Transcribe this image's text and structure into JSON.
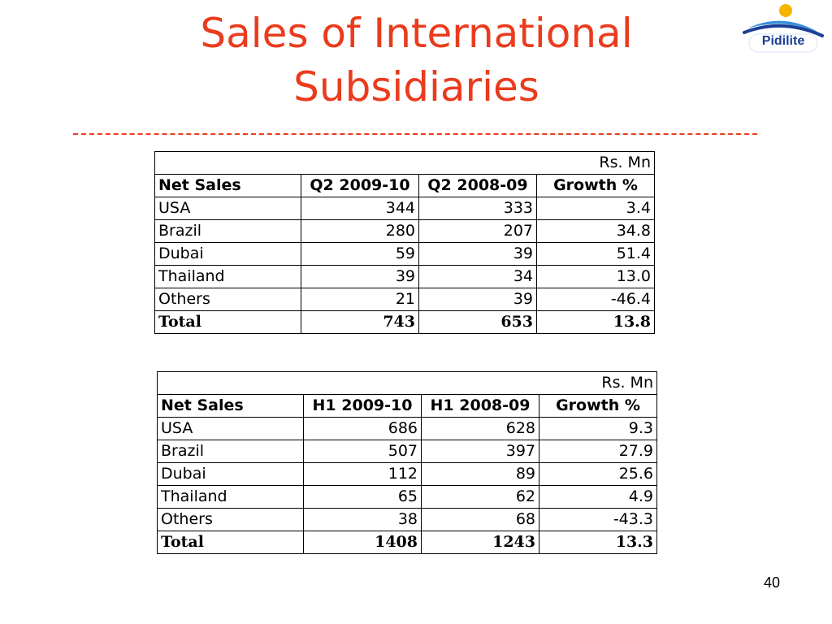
{
  "slide": {
    "title_line1": "Sales of International",
    "title_line2": "Subsidiaries",
    "page_number": "40"
  },
  "logo": {
    "text": "Pidilite"
  },
  "colors": {
    "title": "#ea3b1d",
    "logo_blue": "#1b3f96",
    "logo_sun": "#f5b400"
  },
  "tables": [
    {
      "unit": "Rs. Mn",
      "headers": [
        "Net Sales",
        "Q2 2009-10",
        "Q2 2008-09",
        "Growth %"
      ],
      "rows": [
        [
          "USA",
          "344",
          "333",
          "3.4"
        ],
        [
          "Brazil",
          "280",
          "207",
          "34.8"
        ],
        [
          "Dubai",
          "59",
          "39",
          "51.4"
        ],
        [
          "Thailand",
          "39",
          "34",
          "13.0"
        ],
        [
          "Others",
          "21",
          "39",
          "-46.4"
        ]
      ],
      "total": [
        "Total",
        "743",
        "653",
        "13.8"
      ]
    },
    {
      "unit": "Rs. Mn",
      "headers": [
        "Net Sales",
        "H1 2009-10",
        "H1 2008-09",
        "Growth %"
      ],
      "rows": [
        [
          "USA",
          "686",
          "628",
          "9.3"
        ],
        [
          "Brazil",
          "507",
          "397",
          "27.9"
        ],
        [
          "Dubai",
          "112",
          "89",
          "25.6"
        ],
        [
          "Thailand",
          "65",
          "62",
          "4.9"
        ],
        [
          "Others",
          "38",
          "68",
          "-43.3"
        ]
      ],
      "total": [
        "Total",
        "1408",
        "1243",
        "13.3"
      ]
    }
  ]
}
